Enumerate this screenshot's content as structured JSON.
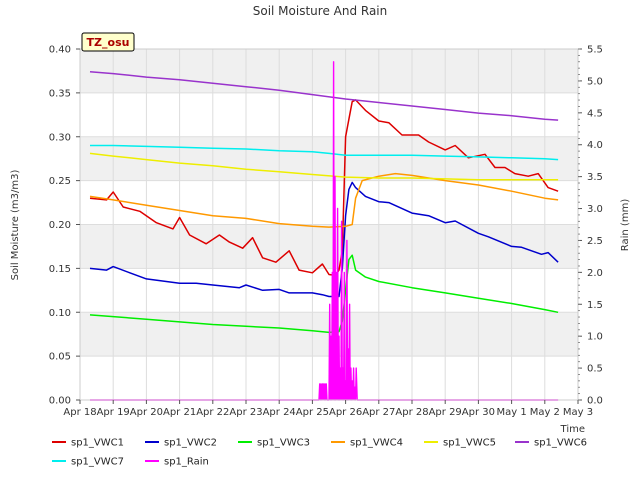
{
  "chart_data": {
    "type": "line",
    "title": "Soil Moisture And Rain",
    "xlabel": "Time",
    "ylabel": "Soil Moisture (m3/m3)",
    "y2label": "Rain (mm)",
    "badge": "TZ_osu",
    "xlim": [
      0,
      15
    ],
    "ylim": [
      0,
      0.4
    ],
    "y2lim": [
      0,
      5.5
    ],
    "xticks": [
      0,
      1,
      2,
      3,
      4,
      5,
      6,
      7,
      8,
      9,
      10,
      11,
      12,
      13,
      14,
      15
    ],
    "xtick_labels": [
      "Apr 18",
      "Apr 19",
      "Apr 20",
      "Apr 21",
      "Apr 22",
      "Apr 23",
      "Apr 24",
      "Apr 25",
      "Apr 26",
      "Apr 27",
      "Apr 28",
      "Apr 29",
      "Apr 30",
      "May 1",
      "May 2",
      "May 3"
    ],
    "yticks": [
      0.0,
      0.05,
      0.1,
      0.15,
      0.2,
      0.25,
      0.3,
      0.35,
      0.4
    ],
    "ytick_labels": [
      "0.00",
      "0.05",
      "0.10",
      "0.15",
      "0.20",
      "0.25",
      "0.30",
      "0.35",
      "0.40"
    ],
    "y2ticks": [
      0.0,
      0.5,
      1.0,
      1.5,
      2.0,
      2.5,
      3.0,
      3.5,
      4.0,
      4.5,
      5.0,
      5.5
    ],
    "y2tick_labels": [
      "0.0",
      "0.5",
      "1.0",
      "1.5",
      "2.0",
      "2.5",
      "3.0",
      "3.5",
      "4.0",
      "4.5",
      "5.0",
      "5.5"
    ],
    "series": [
      {
        "name": "sp1_VWC1",
        "color": "#dd0000",
        "axis": "left",
        "x": [
          0.3,
          0.8,
          1.0,
          1.3,
          1.8,
          2.3,
          2.8,
          3.0,
          3.3,
          3.8,
          4.2,
          4.5,
          4.9,
          5.2,
          5.5,
          5.9,
          6.3,
          6.6,
          7.0,
          7.3,
          7.5,
          7.7,
          7.8,
          7.9,
          8.0,
          8.1,
          8.2,
          8.3,
          8.6,
          9.0,
          9.3,
          9.7,
          10.2,
          10.5,
          11.0,
          11.3,
          11.7,
          12.2,
          12.5,
          12.8,
          13.1,
          13.5,
          13.8,
          14.1,
          14.4
        ],
        "y": [
          0.23,
          0.228,
          0.237,
          0.22,
          0.215,
          0.202,
          0.195,
          0.208,
          0.188,
          0.178,
          0.188,
          0.18,
          0.173,
          0.185,
          0.162,
          0.157,
          0.17,
          0.148,
          0.145,
          0.155,
          0.143,
          0.142,
          0.148,
          0.17,
          0.3,
          0.32,
          0.34,
          0.342,
          0.33,
          0.318,
          0.316,
          0.302,
          0.302,
          0.294,
          0.285,
          0.29,
          0.276,
          0.28,
          0.265,
          0.265,
          0.258,
          0.255,
          0.258,
          0.242,
          0.238
        ]
      },
      {
        "name": "sp1_VWC2",
        "color": "#0000cc",
        "axis": "left",
        "x": [
          0.3,
          0.8,
          1.0,
          1.5,
          2.0,
          3.0,
          3.5,
          4.0,
          4.8,
          5.0,
          5.5,
          6.0,
          6.3,
          7.0,
          7.3,
          7.5,
          7.8,
          7.9,
          8.0,
          8.1,
          8.2,
          8.3,
          8.6,
          9.0,
          9.3,
          10.0,
          10.5,
          11.0,
          11.3,
          12.0,
          12.3,
          13.0,
          13.3,
          13.9,
          14.1,
          14.4
        ],
        "y": [
          0.15,
          0.148,
          0.152,
          0.145,
          0.138,
          0.133,
          0.133,
          0.131,
          0.128,
          0.131,
          0.125,
          0.126,
          0.122,
          0.122,
          0.12,
          0.118,
          0.118,
          0.15,
          0.21,
          0.24,
          0.248,
          0.242,
          0.232,
          0.226,
          0.225,
          0.213,
          0.21,
          0.202,
          0.204,
          0.19,
          0.186,
          0.175,
          0.174,
          0.166,
          0.168,
          0.157
        ]
      },
      {
        "name": "sp1_VWC3",
        "color": "#00ee00",
        "axis": "left",
        "x": [
          0.3,
          1.0,
          2.0,
          3.0,
          4.0,
          5.0,
          6.0,
          7.0,
          7.5,
          7.8,
          7.9,
          8.0,
          8.1,
          8.2,
          8.3,
          8.6,
          9.0,
          10.0,
          11.0,
          12.0,
          13.0,
          14.0,
          14.4
        ],
        "y": [
          0.097,
          0.095,
          0.092,
          0.089,
          0.086,
          0.084,
          0.082,
          0.079,
          0.077,
          0.078,
          0.09,
          0.125,
          0.16,
          0.165,
          0.148,
          0.14,
          0.135,
          0.128,
          0.122,
          0.116,
          0.11,
          0.103,
          0.1
        ]
      },
      {
        "name": "sp1_VWC4",
        "color": "#ff9900",
        "axis": "left",
        "x": [
          0.3,
          1.0,
          2.0,
          3.0,
          4.0,
          5.0,
          6.0,
          7.0,
          7.5,
          8.0,
          8.2,
          8.3,
          8.5,
          9.0,
          9.5,
          10.0,
          11.0,
          12.0,
          13.0,
          14.0,
          14.4
        ],
        "y": [
          0.232,
          0.228,
          0.222,
          0.216,
          0.21,
          0.207,
          0.201,
          0.198,
          0.197,
          0.198,
          0.2,
          0.23,
          0.25,
          0.255,
          0.258,
          0.256,
          0.25,
          0.245,
          0.238,
          0.23,
          0.228
        ]
      },
      {
        "name": "sp1_VWC5",
        "color": "#eeee00",
        "axis": "left",
        "x": [
          0.3,
          1.0,
          2.0,
          3.0,
          4.0,
          5.0,
          6.0,
          7.0,
          8.0,
          9.0,
          10.0,
          11.0,
          12.0,
          13.0,
          14.0,
          14.4
        ],
        "y": [
          0.281,
          0.278,
          0.274,
          0.27,
          0.267,
          0.263,
          0.26,
          0.257,
          0.254,
          0.253,
          0.253,
          0.252,
          0.251,
          0.251,
          0.251,
          0.251
        ]
      },
      {
        "name": "sp1_VWC6",
        "color": "#9933cc",
        "axis": "left",
        "x": [
          0.3,
          1.0,
          2.0,
          3.0,
          4.0,
          5.0,
          6.0,
          7.0,
          8.0,
          9.0,
          10.0,
          11.0,
          12.0,
          13.0,
          14.0,
          14.4
        ],
        "y": [
          0.374,
          0.372,
          0.368,
          0.365,
          0.361,
          0.357,
          0.353,
          0.348,
          0.343,
          0.339,
          0.335,
          0.331,
          0.327,
          0.324,
          0.32,
          0.319
        ]
      },
      {
        "name": "sp1_VWC7",
        "color": "#00eeee",
        "axis": "left",
        "x": [
          0.3,
          1.0,
          2.0,
          3.0,
          4.0,
          5.0,
          6.0,
          7.0,
          7.5,
          8.0,
          9.0,
          10.0,
          11.0,
          12.0,
          13.0,
          14.0,
          14.4
        ],
        "y": [
          0.29,
          0.29,
          0.289,
          0.288,
          0.287,
          0.286,
          0.284,
          0.283,
          0.281,
          0.279,
          0.279,
          0.279,
          0.278,
          0.277,
          0.276,
          0.275,
          0.274
        ]
      },
      {
        "name": "sp1_Rain",
        "color": "#ff00ff",
        "axis": "right",
        "x": [
          0.3,
          7.2,
          7.22,
          7.24,
          7.26,
          7.28,
          7.3,
          7.32,
          7.34,
          7.36,
          7.38,
          7.4,
          7.42,
          7.44,
          7.46,
          7.5,
          7.52,
          7.54,
          7.56,
          7.58,
          7.6,
          7.62,
          7.64,
          7.66,
          7.68,
          7.7,
          7.72,
          7.74,
          7.76,
          7.78,
          7.8,
          7.82,
          7.84,
          7.86,
          7.88,
          7.9,
          7.92,
          7.94,
          7.96,
          7.98,
          8.0,
          8.02,
          8.04,
          8.06,
          8.08,
          8.1,
          8.12,
          8.14,
          8.16,
          8.18,
          8.2,
          8.22,
          8.24,
          8.26,
          8.28,
          8.3,
          8.32,
          8.35,
          14.4
        ],
        "y": [
          0,
          0,
          0.25,
          0,
          0.25,
          0,
          0.25,
          0,
          0.25,
          0,
          0.25,
          0,
          0.25,
          0,
          0,
          0,
          1.5,
          0,
          1.0,
          0,
          2.0,
          0,
          5.3,
          0,
          3.5,
          0,
          2.0,
          0,
          3.0,
          0,
          1.0,
          0,
          0.5,
          0,
          2.8,
          0,
          0.5,
          0,
          2.0,
          0,
          0.3,
          0,
          2.5,
          0,
          0.8,
          0,
          1.5,
          0,
          0.5,
          0,
          0.3,
          0,
          0.5,
          0,
          0.2,
          0,
          0.5,
          0,
          0
        ]
      }
    ]
  }
}
